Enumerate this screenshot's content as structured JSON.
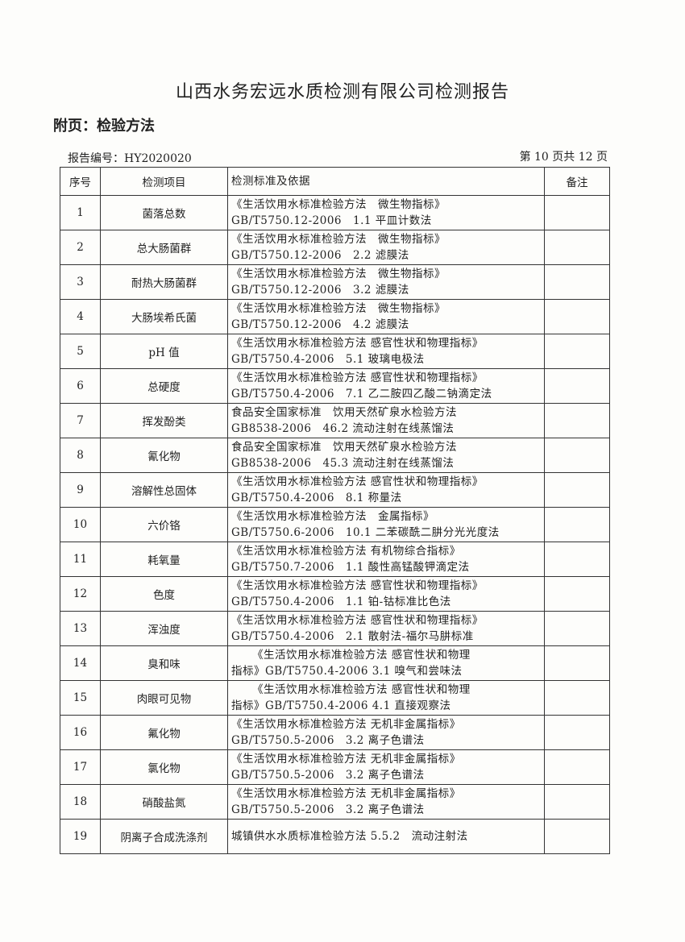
{
  "header": {
    "title": "山西水务宏远水质检测有限公司检测报告",
    "subtitle": "附页：检验方法",
    "report_no": "报告编号：HY2020020",
    "page": "第 10 页共 12 页"
  },
  "table": {
    "columns": [
      "序号",
      "检测项目",
      "检测标准及依据",
      "备注"
    ],
    "rows": [
      {
        "no": "1",
        "item": "菌落总数",
        "l1": "《生活饮用水标准检验方法　微生物指标》",
        "l2": "GB/T5750.12-2006　1.1 平皿计数法",
        "note": ""
      },
      {
        "no": "2",
        "item": "总大肠菌群",
        "l1": "《生活饮用水标准检验方法　微生物指标》",
        "l2": "GB/T5750.12-2006　2.2 滤膜法",
        "note": ""
      },
      {
        "no": "3",
        "item": "耐热大肠菌群",
        "l1": "《生活饮用水标准检验方法　微生物指标》",
        "l2": "GB/T5750.12-2006　3.2 滤膜法",
        "note": ""
      },
      {
        "no": "4",
        "item": "大肠埃希氏菌",
        "l1": "《生活饮用水标准检验方法　微生物指标》",
        "l2": "GB/T5750.12-2006　4.2 滤膜法",
        "note": ""
      },
      {
        "no": "5",
        "item": "pH 值",
        "l1": "《生活饮用水标准检验方法 感官性状和物理指标》",
        "l2": "GB/T5750.4-2006　5.1 玻璃电极法",
        "note": ""
      },
      {
        "no": "6",
        "item": "总硬度",
        "l1": "《生活饮用水标准检验方法 感官性状和物理指标》",
        "l2": "GB/T5750.4-2006　7.1 乙二胺四乙酸二钠滴定法",
        "note": ""
      },
      {
        "no": "7",
        "item": "挥发酚类",
        "l1": "食品安全国家标准　饮用天然矿泉水检验方法",
        "l2": "GB8538-2006　46.2 流动注射在线蒸馏法",
        "note": ""
      },
      {
        "no": "8",
        "item": "氰化物",
        "l1": "食品安全国家标准　饮用天然矿泉水检验方法",
        "l2": "GB8538-2006　45.3 流动注射在线蒸馏法",
        "note": ""
      },
      {
        "no": "9",
        "item": "溶解性总固体",
        "l1": "《生活饮用水标准检验方法 感官性状和物理指标》",
        "l2": "GB/T5750.4-2006　8.1 称量法",
        "note": ""
      },
      {
        "no": "10",
        "item": "六价铬",
        "l1": "《生活饮用水标准检验方法　金属指标》",
        "l2": "GB/T5750.6-2006　10.1 二苯碳酰二肼分光光度法",
        "note": ""
      },
      {
        "no": "11",
        "item": "耗氧量",
        "l1": "《生活饮用水标准检验方法 有机物综合指标》",
        "l2": "GB/T5750.7-2006　1.1 酸性高锰酸钾滴定法",
        "note": ""
      },
      {
        "no": "12",
        "item": "色度",
        "l1": "《生活饮用水标准检验方法 感官性状和物理指标》",
        "l2": "GB/T5750.4-2006　1.1 铂-钴标准比色法",
        "note": ""
      },
      {
        "no": "13",
        "item": "浑浊度",
        "l1": "《生活饮用水标准检验方法 感官性状和物理指标》",
        "l2": "GB/T5750.4-2006　2.1 散射法-福尔马肼标准",
        "note": ""
      },
      {
        "no": "14",
        "item": "臭和味",
        "l1": "《生活饮用水标准检验方法 感官性状和物理",
        "l2": "指标》GB/T5750.4-2006 3.1 嗅气和尝味法",
        "note": ""
      },
      {
        "no": "15",
        "item": "肉眼可见物",
        "l1": "《生活饮用水标准检验方法 感官性状和物理",
        "l2": "指标》GB/T5750.4-2006 4.1 直接观察法",
        "note": ""
      },
      {
        "no": "16",
        "item": "氟化物",
        "l1": "《生活饮用水标准检验方法 无机非金属指标》",
        "l2": "GB/T5750.5-2006　3.2 离子色谱法",
        "note": ""
      },
      {
        "no": "17",
        "item": "氯化物",
        "l1": "《生活饮用水标准检验方法 无机非金属指标》",
        "l2": "GB/T5750.5-2006　3.2 离子色谱法",
        "note": ""
      },
      {
        "no": "18",
        "item": "硝酸盐氮",
        "l1": "《生活饮用水标准检验方法 无机非金属指标》",
        "l2": "GB/T5750.5-2006　3.2 离子色谱法",
        "note": ""
      },
      {
        "no": "19",
        "item": "阴离子合成洗涤剂",
        "l1": "城镇供水水质标准检验方法 5.5.2　流动注射法",
        "l2": "",
        "note": ""
      }
    ]
  }
}
